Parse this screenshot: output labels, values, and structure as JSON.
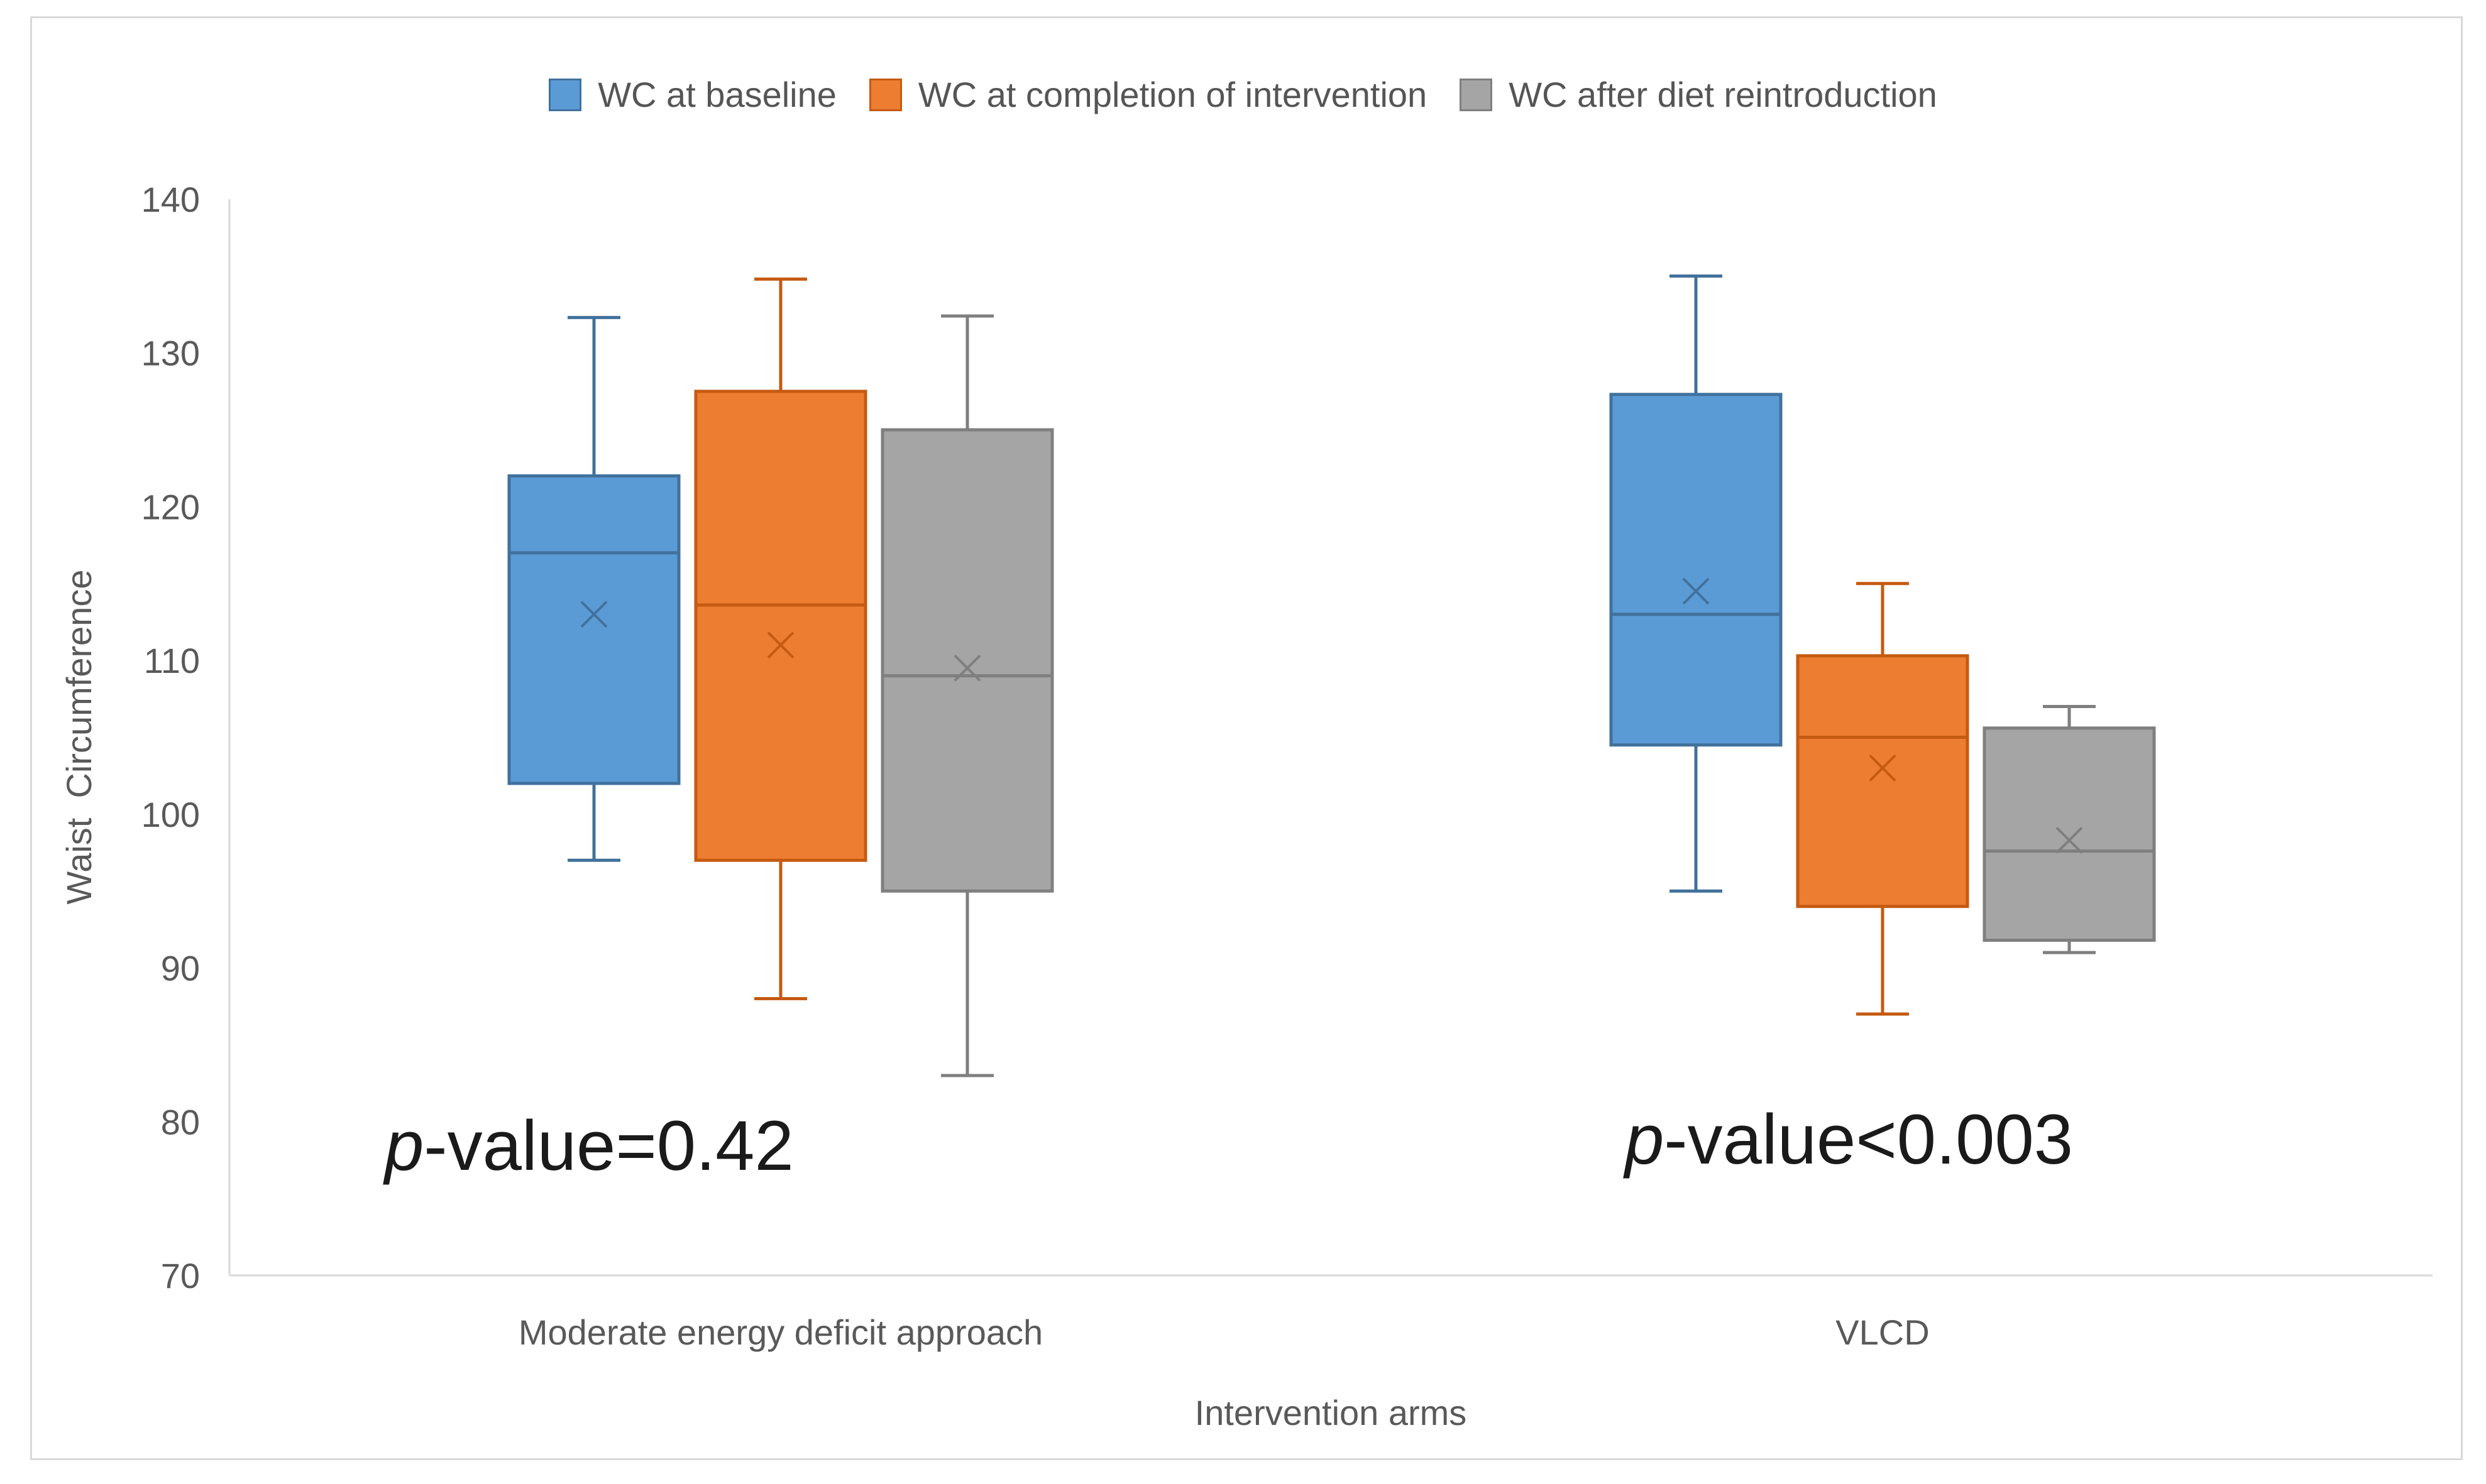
{
  "chart_data": {
    "type": "box",
    "title": "",
    "xlabel": "Intervention arms",
    "ylabel": "Waist  Circumference",
    "ylim": [
      70,
      140
    ],
    "yticks": [
      70,
      80,
      90,
      100,
      110,
      120,
      130,
      140
    ],
    "categories": [
      "Moderate energy deficit approach",
      "VLCD"
    ],
    "series": [
      {
        "name": "WC at baseline",
        "color": "#5b9bd5",
        "stroke": "#41719c",
        "boxes": [
          {
            "min": 97,
            "q1": 102,
            "median": 117,
            "q3": 122,
            "max": 132.3,
            "mean": 113
          },
          {
            "min": 95,
            "q1": 104.5,
            "median": 113,
            "q3": 127.3,
            "max": 135,
            "mean": 114.5
          }
        ]
      },
      {
        "name": "WC at completion of intervention",
        "color": "#ed7d31",
        "stroke": "#c55a11",
        "boxes": [
          {
            "min": 88,
            "q1": 97,
            "median": 113.6,
            "q3": 127.5,
            "max": 134.8,
            "mean": 111
          },
          {
            "min": 87,
            "q1": 94,
            "median": 105,
            "q3": 110.3,
            "max": 115,
            "mean": 103
          }
        ]
      },
      {
        "name": "WC after diet reintroduction",
        "color": "#a5a5a5",
        "stroke": "#7f7f7f",
        "boxes": [
          {
            "min": 83,
            "q1": 95,
            "median": 109,
            "q3": 125,
            "max": 132.4,
            "mean": 109.5
          },
          {
            "min": 91,
            "q1": 91.8,
            "median": 97.6,
            "q3": 105.6,
            "max": 107,
            "mean": 98.3
          }
        ]
      }
    ],
    "annotations": [
      {
        "italic": "p",
        "text": "-value=0.42"
      },
      {
        "italic": "p",
        "text": "-value<0.003"
      }
    ]
  }
}
